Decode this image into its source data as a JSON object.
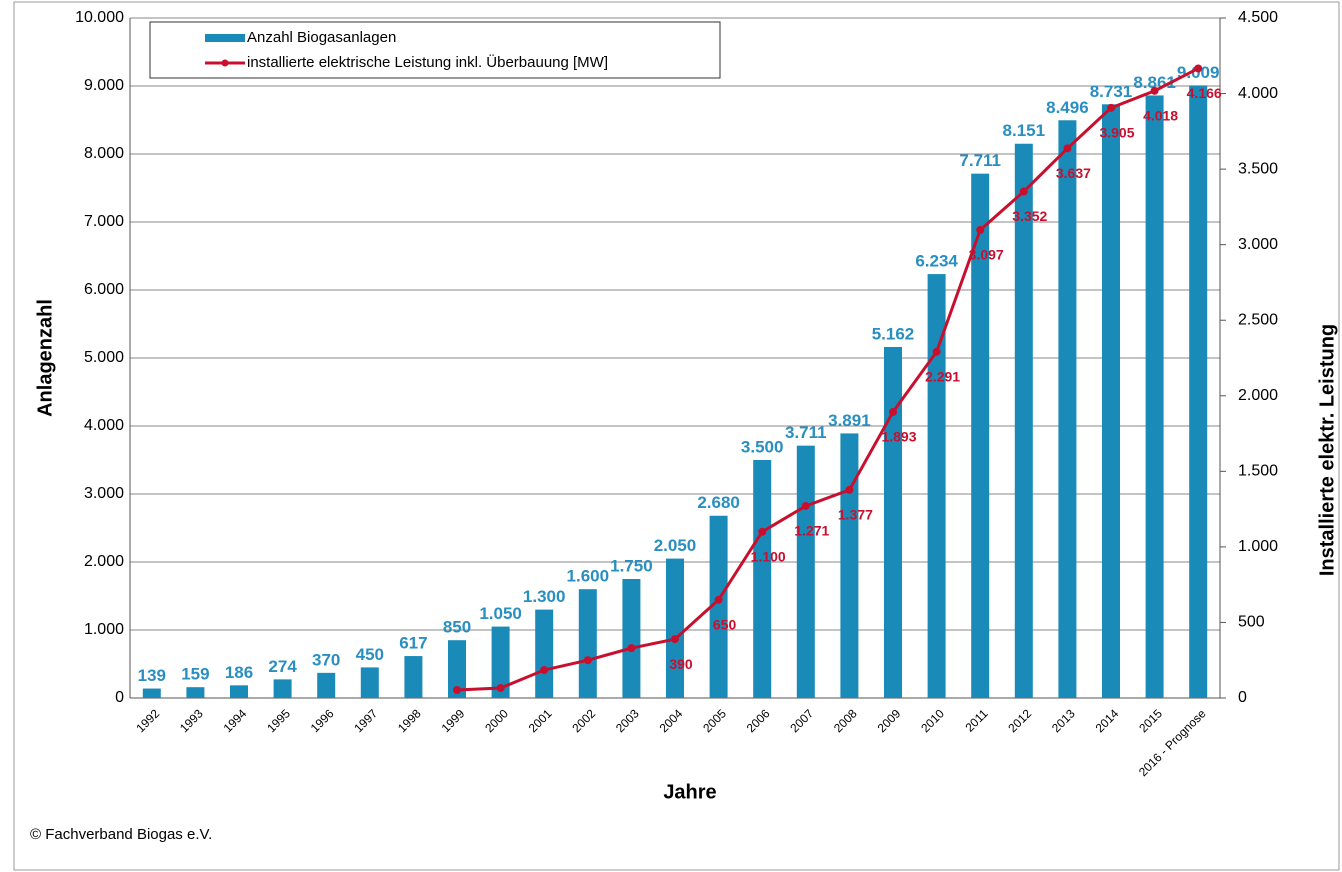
{
  "chart_data": {
    "type": "combo",
    "y_label": "Anlagenzahl",
    "y2_label": "Installierte elektr. Leistung",
    "x_label": "Jahre",
    "source": "© Fachverband Biogas e.V.",
    "categories": [
      "1992",
      "1993",
      "1994",
      "1995",
      "1996",
      "1997",
      "1998",
      "1999",
      "2000",
      "2001",
      "2002",
      "2003",
      "2004",
      "2005",
      "2006",
      "2007",
      "2008",
      "2009",
      "2010",
      "2011",
      "2012",
      "2013",
      "2014",
      "2015",
      "2016 - Prognose"
    ],
    "series": [
      {
        "name": "Anzahl Biogasanlagen",
        "type": "bar",
        "color": "#1a8bb8",
        "values": [
          139,
          159,
          186,
          274,
          370,
          450,
          617,
          850,
          1050,
          1300,
          1600,
          1750,
          2050,
          2680,
          3500,
          3711,
          3891,
          5162,
          6234,
          7711,
          8151,
          8496,
          8731,
          8861,
          9009
        ],
        "value_labels": [
          "139",
          "159",
          "186",
          "274",
          "370",
          "450",
          "617",
          "850",
          "1.050",
          "1.300",
          "1.600",
          "1.750",
          "2.050",
          "2.680",
          "3.500",
          "3.711",
          "3.891",
          "5.162",
          "6.234",
          "7.711",
          "8.151",
          "8.496",
          "8.731",
          "8.861",
          "9.009"
        ]
      },
      {
        "name": "installierte elektrische Leistung inkl. Überbauung [MW]",
        "type": "line",
        "axis": "y2",
        "color": "#c8102e",
        "values": [
          null,
          null,
          null,
          null,
          null,
          null,
          null,
          53,
          66,
          185,
          250,
          330,
          390,
          650,
          1100,
          1271,
          1377,
          1893,
          2291,
          3097,
          3352,
          3637,
          3905,
          4018,
          4166
        ],
        "value_labels": [
          null,
          null,
          null,
          null,
          null,
          null,
          null,
          null,
          null,
          null,
          null,
          null,
          "390",
          "650",
          "1.100",
          "1.271",
          "1.377",
          "1.893",
          "2.291",
          "3.097",
          "3.352",
          "3.637",
          "3.905",
          "4.018",
          "4.166"
        ]
      }
    ],
    "ylim": [
      0,
      10000
    ],
    "yticks": [
      0,
      {
        "value": 1000,
        "label": "1.000"
      },
      {
        "value": 2000,
        "label": "2.000"
      },
      {
        "value": 3000,
        "label": "3.000"
      },
      {
        "value": 4000,
        "label": "4.000"
      },
      {
        "value": 5000,
        "label": "5.000"
      },
      {
        "value": 6000,
        "label": "6.000"
      },
      {
        "value": 7000,
        "label": "7.000"
      },
      {
        "value": 8000,
        "label": "8.000"
      },
      {
        "value": 9000,
        "label": "9.000"
      },
      {
        "value": 10000,
        "label": "10.000"
      }
    ],
    "y2lim": [
      0,
      4500
    ],
    "y2ticks": [
      0,
      500,
      {
        "value": 1000,
        "label": "1.000"
      },
      {
        "value": 1500,
        "label": "1.500"
      },
      {
        "value": 2000,
        "label": "2.000"
      },
      {
        "value": 2500,
        "label": "2.500"
      },
      {
        "value": 3000,
        "label": "3.000"
      },
      {
        "value": 3500,
        "label": "3.500"
      },
      {
        "value": 4000,
        "label": "4.000"
      },
      {
        "value": 4500,
        "label": "4.500"
      }
    ],
    "grid": true
  }
}
